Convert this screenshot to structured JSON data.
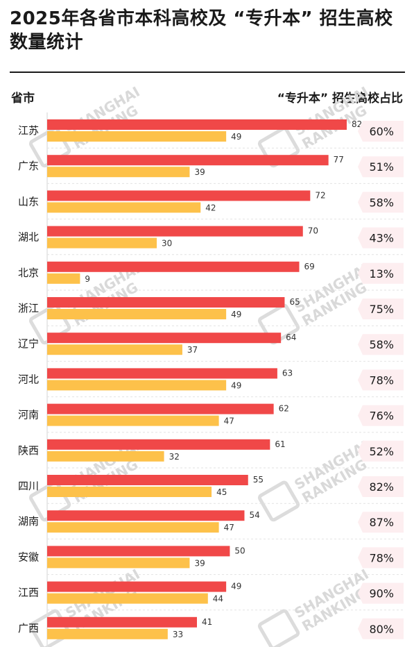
{
  "header": {
    "title": "2025年各省市本科高校及 “专升本” 招生高校数量统计",
    "left_col": "省市",
    "right_col": "“专升本” 招生高校占比"
  },
  "watermark": "SHANGHAI RANKING",
  "colors": {
    "series1": "#f04848",
    "series2": "#fdc14a",
    "pct_bg": "#fdeef0"
  },
  "chart_data": {
    "type": "bar",
    "orientation": "horizontal",
    "categories": [
      "江苏",
      "广东",
      "山东",
      "湖北",
      "北京",
      "浙江",
      "辽宁",
      "河北",
      "河南",
      "陕西",
      "四川",
      "湖南",
      "安徽",
      "江西",
      "广西"
    ],
    "series": [
      {
        "values": [
          82,
          77,
          72,
          70,
          69,
          65,
          64,
          63,
          62,
          61,
          55,
          54,
          50,
          49,
          41
        ]
      },
      {
        "values": [
          49,
          39,
          42,
          30,
          9,
          49,
          37,
          49,
          47,
          32,
          45,
          47,
          39,
          44,
          33
        ]
      }
    ],
    "percent_labels": [
      "60%",
      "51%",
      "58%",
      "43%",
      "13%",
      "75%",
      "58%",
      "78%",
      "76%",
      "52%",
      "82%",
      "87%",
      "78%",
      "90%",
      "80%"
    ],
    "xlim": [
      0,
      82
    ]
  }
}
